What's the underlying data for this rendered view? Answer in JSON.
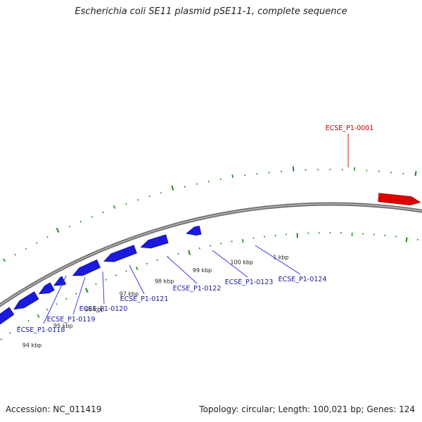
{
  "title": "Escherichia coli SE11 plasmid pSE11-1, complete sequence",
  "footer": {
    "accession": "Accession: NC_011419",
    "summary": "Topology: circular; Length: 100,021 bp; Genes: 124"
  },
  "colors": {
    "forward_gene": "#e00000",
    "reverse_gene": "#1a1adf",
    "backbone": "#8a8a8a",
    "ticks": "#1f8a1f",
    "label_text_reverse": "#1a1a9a",
    "label_text_forward": "#c00000",
    "scale_text": "#222222"
  },
  "scale_labels": [
    "94 kbp",
    "95 kbp",
    "96 kbp",
    "97 kbp",
    "98 kbp",
    "99 kbp",
    "100 kbp",
    "1 kbp"
  ],
  "genes": [
    {
      "label": "ECSE_P1-0001",
      "strand": "forward"
    },
    {
      "label": "ECSE_P1-0118",
      "strand": "reverse"
    },
    {
      "label": "ECSE_P1-0119",
      "strand": "reverse"
    },
    {
      "label": "ECSE_P1-0120",
      "strand": "reverse"
    },
    {
      "label": "ECSE_P1-0121",
      "strand": "reverse"
    },
    {
      "label": "ECSE_P1-0122",
      "strand": "reverse"
    },
    {
      "label": "ECSE_P1-0123",
      "strand": "reverse"
    },
    {
      "label": "ECSE_P1-0124",
      "strand": "reverse"
    }
  ]
}
